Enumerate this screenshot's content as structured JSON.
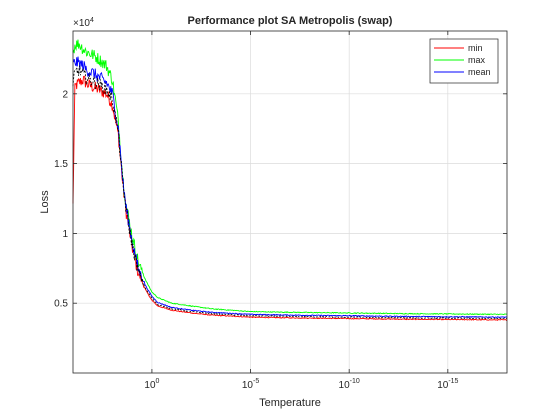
{
  "chart_data": {
    "type": "line",
    "title": "Performance plot SA Metropolis (swap)",
    "xlabel": "Temperature",
    "ylabel": "Loss",
    "y_exponent_label": "×10",
    "y_exponent_power": "4",
    "y_multiplier": 10000,
    "x_scale": "log",
    "x_direction": "decreasing",
    "xlim": [
      10000,
      1e-18
    ],
    "ylim": [
      0,
      24500
    ],
    "grid": true,
    "legend_position": "top-right",
    "x_ticks": [
      {
        "value": 1,
        "base": "10",
        "exp": "0"
      },
      {
        "value": 1e-05,
        "base": "10",
        "exp": "-5"
      },
      {
        "value": 1e-10,
        "base": "10",
        "exp": "-10"
      },
      {
        "value": 1e-15,
        "base": "10",
        "exp": "-15"
      }
    ],
    "y_ticks": [
      {
        "value": 5000,
        "label": "0.5"
      },
      {
        "value": 10000,
        "label": "1"
      },
      {
        "value": 15000,
        "label": "1.5"
      },
      {
        "value": 20000,
        "label": "2"
      }
    ],
    "series": [
      {
        "name": "min",
        "color": "#ff0000",
        "points": [
          [
            10000,
            12000
          ],
          [
            8000,
            20500
          ],
          [
            5000,
            20800
          ],
          [
            3000,
            21000
          ],
          [
            2000,
            20700
          ],
          [
            1000,
            20500
          ],
          [
            500,
            20300
          ],
          [
            200,
            20000
          ],
          [
            100,
            19200
          ],
          [
            50,
            17000
          ],
          [
            30,
            13500
          ],
          [
            20,
            11500
          ],
          [
            10,
            9000
          ],
          [
            5,
            7200
          ],
          [
            2,
            5900
          ],
          [
            1,
            5200
          ],
          [
            0.5,
            4800
          ],
          [
            0.1,
            4500
          ],
          [
            0.01,
            4300
          ],
          [
            0.001,
            4150
          ],
          [
            1e-05,
            4000
          ],
          [
            1e-07,
            3950
          ],
          [
            1e-10,
            3900
          ],
          [
            1e-13,
            3850
          ],
          [
            1e-15,
            3830
          ],
          [
            1e-18,
            3800
          ]
        ]
      },
      {
        "name": "max",
        "color": "#00ff00",
        "points": [
          [
            10000,
            23000
          ],
          [
            8000,
            23500
          ],
          [
            5000,
            23600
          ],
          [
            3000,
            23200
          ],
          [
            2000,
            23000
          ],
          [
            1000,
            22800
          ],
          [
            500,
            22500
          ],
          [
            200,
            22000
          ],
          [
            100,
            21000
          ],
          [
            50,
            18000
          ],
          [
            30,
            14000
          ],
          [
            20,
            12000
          ],
          [
            10,
            9800
          ],
          [
            5,
            8000
          ],
          [
            2,
            6600
          ],
          [
            1,
            5800
          ],
          [
            0.5,
            5400
          ],
          [
            0.1,
            5000
          ],
          [
            0.01,
            4800
          ],
          [
            0.001,
            4600
          ],
          [
            1e-05,
            4400
          ],
          [
            1e-07,
            4350
          ],
          [
            1e-10,
            4300
          ],
          [
            1e-13,
            4250
          ],
          [
            1e-15,
            4230
          ],
          [
            1e-18,
            4200
          ]
        ]
      },
      {
        "name": "mean",
        "color": "#0000ff",
        "points": [
          [
            10000,
            22000
          ],
          [
            8000,
            22300
          ],
          [
            5000,
            22200
          ],
          [
            3000,
            22000
          ],
          [
            2000,
            21700
          ],
          [
            1000,
            21500
          ],
          [
            500,
            21200
          ],
          [
            200,
            20800
          ],
          [
            100,
            20000
          ],
          [
            50,
            17500
          ],
          [
            30,
            13800
          ],
          [
            20,
            11800
          ],
          [
            10,
            9400
          ],
          [
            5,
            7500
          ],
          [
            2,
            6200
          ],
          [
            1,
            5500
          ],
          [
            0.5,
            5050
          ],
          [
            0.1,
            4700
          ],
          [
            0.01,
            4500
          ],
          [
            0.001,
            4350
          ],
          [
            1e-05,
            4200
          ],
          [
            1e-07,
            4150
          ],
          [
            1e-10,
            4100
          ],
          [
            1e-13,
            4050
          ],
          [
            1e-15,
            4030
          ],
          [
            1e-18,
            4000
          ]
        ]
      },
      {
        "name": "",
        "color": "#000000",
        "points": [
          [
            10000,
            20500
          ],
          [
            8000,
            21500
          ],
          [
            5000,
            21700
          ],
          [
            3000,
            21400
          ],
          [
            2000,
            21100
          ],
          [
            1000,
            20900
          ],
          [
            500,
            20700
          ],
          [
            200,
            20300
          ],
          [
            100,
            19600
          ],
          [
            50,
            17200
          ],
          [
            30,
            13600
          ],
          [
            20,
            11600
          ],
          [
            10,
            9200
          ],
          [
            5,
            7300
          ],
          [
            2,
            6000
          ],
          [
            1,
            5350
          ],
          [
            0.5,
            4900
          ],
          [
            0.1,
            4600
          ],
          [
            0.01,
            4400
          ],
          [
            0.001,
            4250
          ],
          [
            1e-05,
            4100
          ],
          [
            1e-07,
            4050
          ],
          [
            1e-10,
            4000
          ],
          [
            1e-13,
            3950
          ],
          [
            1e-15,
            3930
          ],
          [
            1e-18,
            3900
          ]
        ]
      }
    ]
  }
}
